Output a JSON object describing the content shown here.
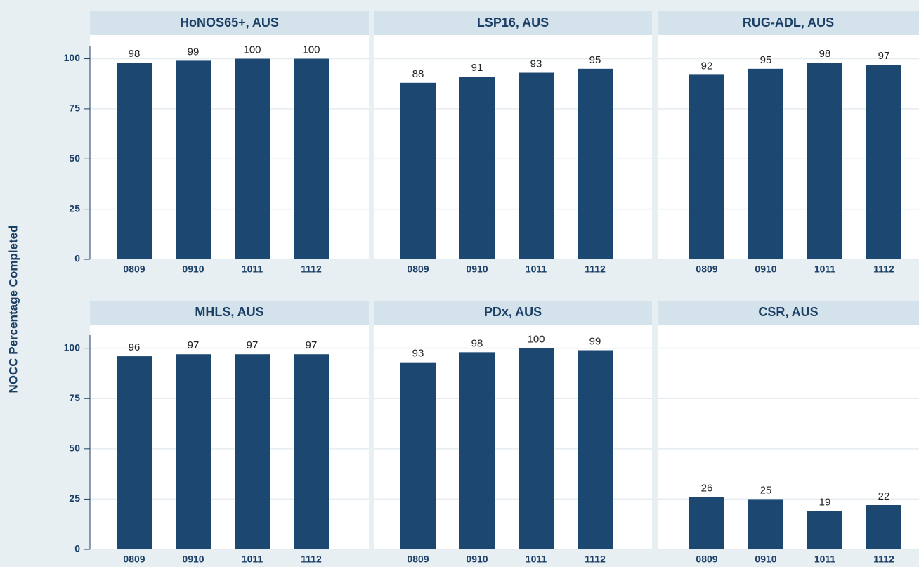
{
  "ylabel": "NOCC Percentage Completed",
  "chart_data": [
    {
      "type": "bar",
      "title": "HoNOS65+, AUS",
      "categories": [
        "0809",
        "0910",
        "1011",
        "1112"
      ],
      "values": [
        98,
        99,
        100,
        100
      ],
      "color": "#1c4770",
      "ylim": [
        0,
        110
      ],
      "yticks": [
        0,
        25,
        50,
        75,
        100
      ],
      "grid": true
    },
    {
      "type": "bar",
      "title": "LSP16, AUS",
      "categories": [
        "0809",
        "0910",
        "1011",
        "1112"
      ],
      "values": [
        88,
        91,
        93,
        95
      ],
      "color": "#1c4770",
      "grid": true
    },
    {
      "type": "bar",
      "title": "RUG-ADL, AUS",
      "categories": [
        "0809",
        "0910",
        "1011",
        "1112"
      ],
      "values": [
        92,
        95,
        98,
        97
      ],
      "color": "#1c4770",
      "grid": true
    },
    {
      "type": "bar",
      "title": "MHLS, AUS",
      "categories": [
        "0809",
        "0910",
        "1011",
        "1112"
      ],
      "values": [
        96,
        97,
        97,
        97
      ],
      "color": "#1c4770",
      "ylim": [
        0,
        110
      ],
      "yticks": [
        0,
        25,
        50,
        75,
        100
      ],
      "grid": true
    },
    {
      "type": "bar",
      "title": "PDx, AUS",
      "categories": [
        "0809",
        "0910",
        "1011",
        "1112"
      ],
      "values": [
        93,
        98,
        100,
        99
      ],
      "color": "#1c4770",
      "grid": true
    },
    {
      "type": "bar",
      "title": "CSR, AUS",
      "categories": [
        "0809",
        "0910",
        "1011",
        "1112"
      ],
      "values": [
        26,
        25,
        19,
        22
      ],
      "color": "#1c4770",
      "grid": true
    }
  ]
}
